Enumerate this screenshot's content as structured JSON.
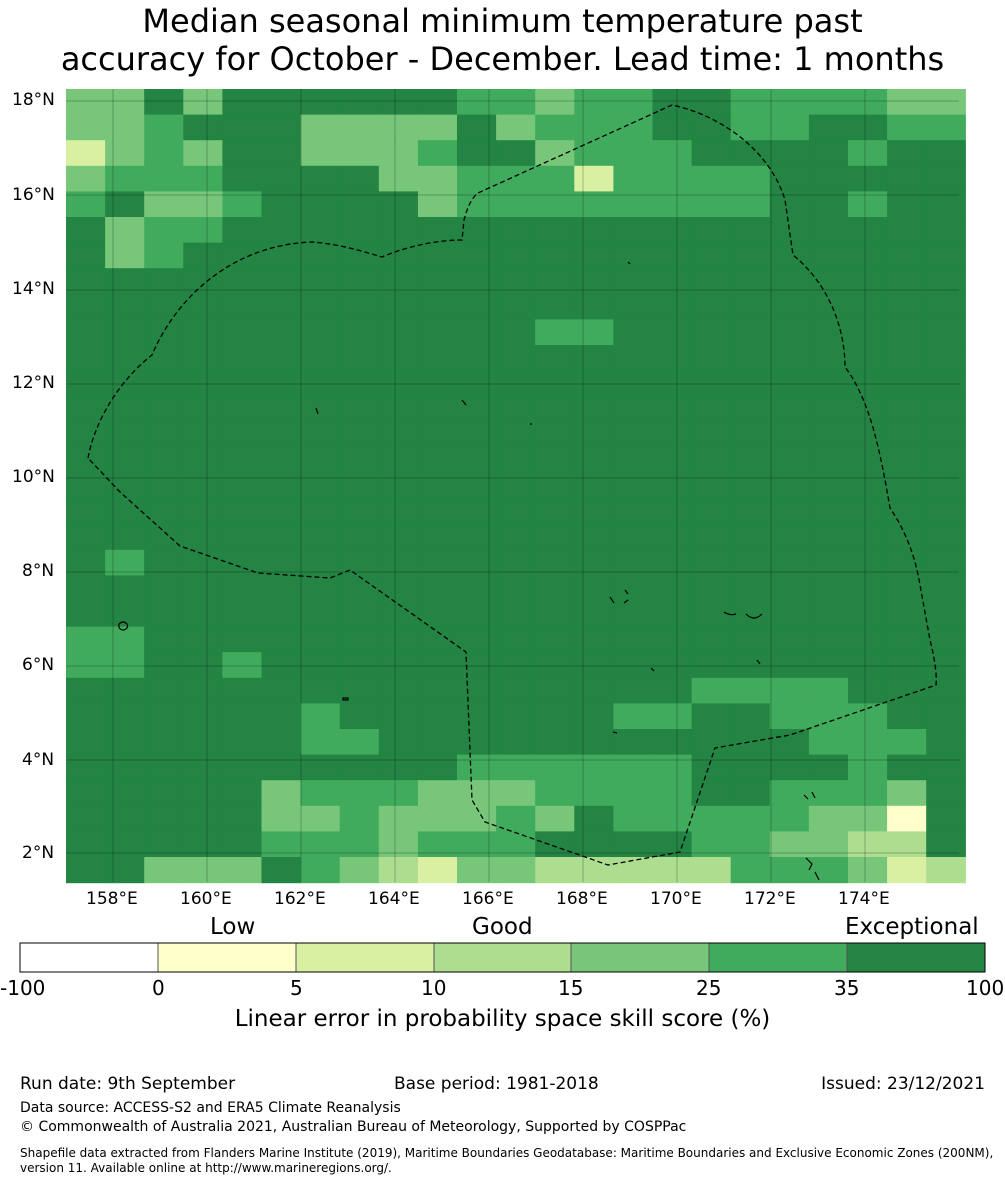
{
  "title": {
    "line1": "Median seasonal minimum temperature past",
    "line2": "accuracy for October - December. Lead time: 1 months"
  },
  "map": {
    "lat_labels": [
      "18°N",
      "16°N",
      "14°N",
      "12°N",
      "10°N",
      "8°N",
      "6°N",
      "4°N",
      "2°N"
    ],
    "lon_labels": [
      "158°E",
      "160°E",
      "162°E",
      "164°E",
      "166°E",
      "168°E",
      "170°E",
      "172°E",
      "174°E"
    ],
    "colors": {
      "class_0": "#ffffff",
      "class_1": "#ffffcc",
      "class_2": "#d9f0a3",
      "class_3": "#addd8e",
      "class_4": "#78c679",
      "class_5": "#41ab5d",
      "class_6": "#238443"
    }
  },
  "colorbar": {
    "words": [
      "Low",
      "Good",
      "Exceptional"
    ],
    "ticks": [
      "-100",
      "0",
      "5",
      "10",
      "15",
      "25",
      "35",
      "100"
    ],
    "label": "Linear error in probability space skill score (%)"
  },
  "footer": {
    "run_date": "Run date: 9th September",
    "base_period": "Base period: 1981-2018",
    "issued": "Issued: 23/12/2021",
    "data_source": "Data source: ACCESS-S2 and ERA5 Climate Reanalysis",
    "copyright": "© Commonwealth of Australia 2021, Australian Bureau of Meteorology, Supported by COSPPac",
    "shapefile": "Shapefile data extracted from Flanders Marine Institute (2019), Maritime Boundaries Geodatabase: Maritime Boundaries and Exclusive Economic Zones (200NM), version 11. Available online at http://www.marineregions.org/."
  }
}
